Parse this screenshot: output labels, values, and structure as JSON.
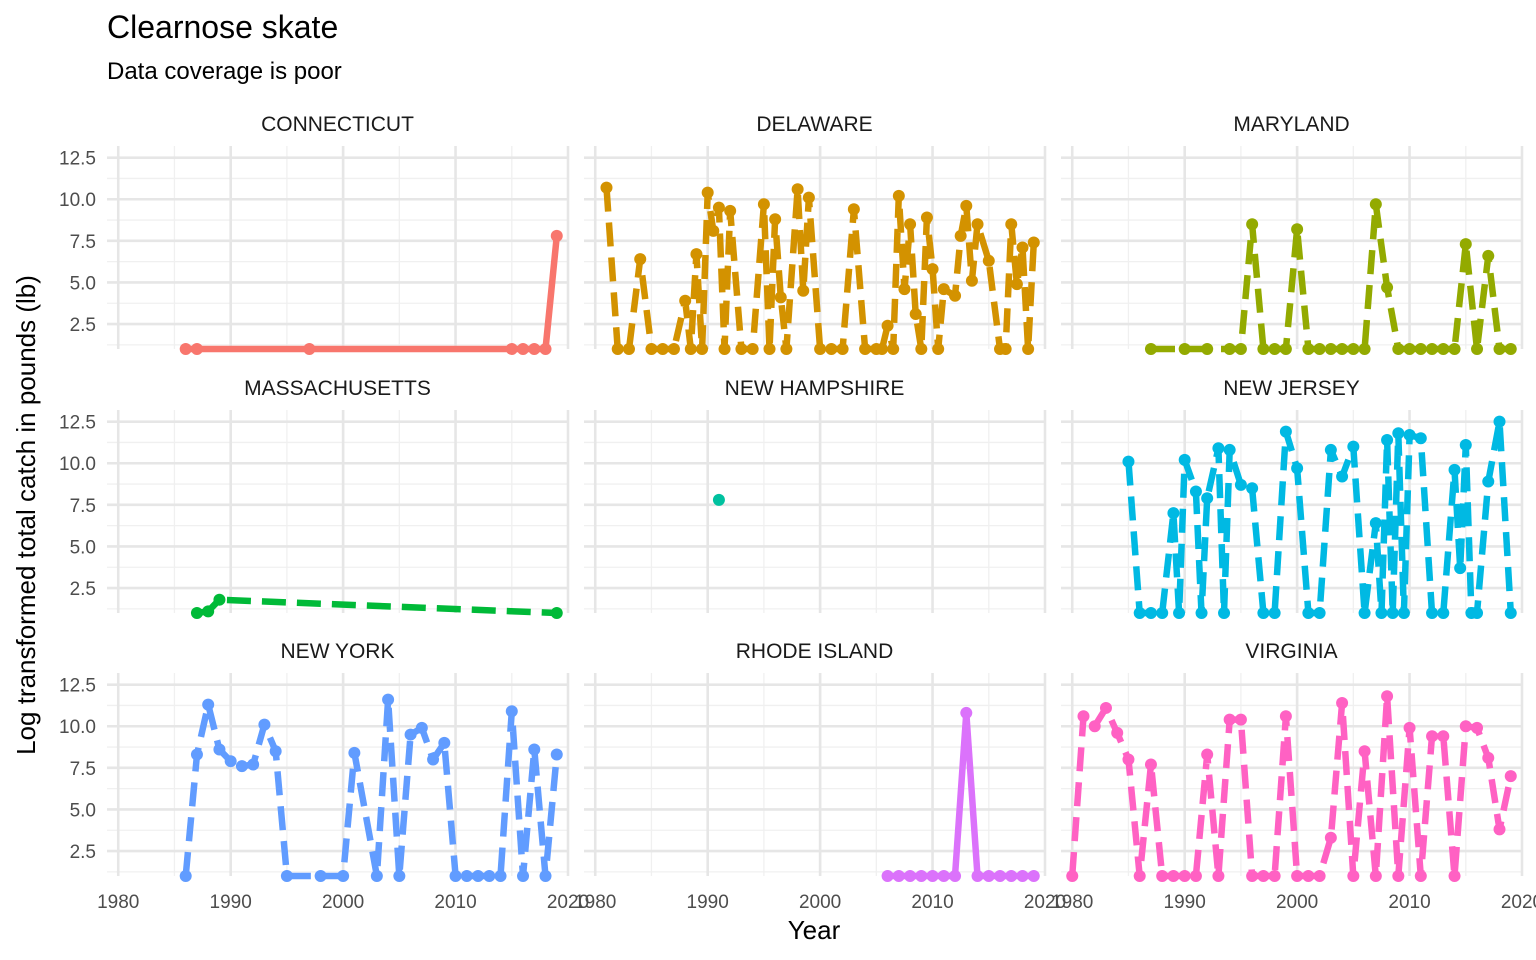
{
  "chart_data": {
    "type": "line",
    "title": "Clearnose skate",
    "subtitle": "Data coverage is poor",
    "xlabel": "Year",
    "ylabel": "Log transformed  total catch in pounds (lb)",
    "xlim": [
      1979,
      2020
    ],
    "ylim": [
      1,
      13.2
    ],
    "x_ticks": [
      "1980",
      "1990",
      "2000",
      "2010",
      "2020"
    ],
    "y_ticks": [
      "2.5",
      "5.0",
      "7.5",
      "10.0",
      "12.5"
    ],
    "grid": true,
    "legend": "none",
    "panels": [
      {
        "name": "CONNECTICUT",
        "color": "#F8766D",
        "dashed": false,
        "x": [
          1986,
          1987,
          1997,
          2015,
          2016,
          2017,
          2018,
          2019
        ],
        "y": [
          1,
          1,
          1,
          1,
          1,
          1,
          1,
          7.8
        ]
      },
      {
        "name": "DELAWARE",
        "color": "#D39200",
        "dashed": true,
        "x": [
          1981,
          1982,
          1983,
          1984,
          1985,
          1986,
          1987,
          1988,
          1988.5,
          1989,
          1989.5,
          1990,
          1990.5,
          1991,
          1991.5,
          1992,
          1993,
          1994,
          1995,
          1995.5,
          1996,
          1996.5,
          1997,
          1998,
          1998.5,
          1999,
          2000,
          2001,
          2002,
          2003,
          2004,
          2005,
          2005.5,
          2006,
          2006.5,
          2007,
          2007.5,
          2008,
          2008.5,
          2009,
          2009.5,
          2010,
          2010.5,
          2011,
          2012,
          2012.5,
          2013,
          2013.5,
          2014,
          2015,
          2016,
          2016.5,
          2017,
          2017.5,
          2018,
          2018.5,
          2019
        ],
        "y": [
          10.7,
          1,
          1,
          6.4,
          1,
          1,
          1,
          3.9,
          1,
          6.7,
          1,
          10.4,
          8.1,
          9.5,
          1,
          9.3,
          1,
          1,
          9.7,
          1,
          8.8,
          4.1,
          1,
          10.6,
          4.5,
          10.1,
          1,
          1,
          1,
          9.4,
          1,
          1,
          1,
          2.4,
          1,
          10.2,
          4.6,
          8.5,
          3.1,
          1,
          8.9,
          5.8,
          1,
          4.6,
          4.2,
          7.8,
          9.6,
          5.1,
          8.5,
          6.3,
          1,
          1,
          8.5,
          4.9,
          7.1,
          1,
          7.4
        ]
      },
      {
        "name": "MARYLAND",
        "color": "#93AA00",
        "dashed": true,
        "x": [
          1987,
          1990,
          1992,
          1994,
          1995,
          1996,
          1997,
          1998,
          1999,
          2000,
          2001,
          2002,
          2003,
          2004,
          2005,
          2006,
          2007,
          2008,
          2009,
          2010,
          2011,
          2012,
          2013,
          2014,
          2015,
          2016,
          2017,
          2018,
          2019
        ],
        "y": [
          1,
          1,
          1,
          1,
          1,
          8.5,
          1,
          1,
          1,
          8.2,
          1,
          1,
          1,
          1,
          1,
          1,
          9.7,
          4.7,
          1,
          1,
          1,
          1,
          1,
          1,
          7.3,
          1,
          6.6,
          1,
          1
        ]
      },
      {
        "name": "MASSACHUSETTS",
        "color": "#00BA38",
        "dashed": true,
        "x": [
          1987,
          1988,
          1989,
          2019
        ],
        "y": [
          1,
          1.1,
          1.8,
          1
        ]
      },
      {
        "name": "NEW HAMPSHIRE",
        "color": "#00C19F",
        "dashed": false,
        "x": [
          1991
        ],
        "y": [
          7.8
        ]
      },
      {
        "name": "NEW JERSEY",
        "color": "#00B9E3",
        "dashed": true,
        "x": [
          1985,
          1986,
          1987,
          1988,
          1989,
          1989.5,
          1990,
          1991,
          1991.5,
          1992,
          1993,
          1993.5,
          1994,
          1995,
          1996,
          1997,
          1998,
          1999,
          2000,
          2001,
          2002,
          2003,
          2004,
          2005,
          2006,
          2007,
          2007.5,
          2008,
          2008.5,
          2009,
          2009.5,
          2010,
          2011,
          2012,
          2013,
          2014,
          2014.5,
          2015,
          2015.5,
          2016,
          2017,
          2018,
          2019
        ],
        "y": [
          10.1,
          1,
          1,
          1,
          7.0,
          1,
          10.2,
          8.3,
          1,
          7.9,
          10.9,
          1,
          10.8,
          8.7,
          8.5,
          1,
          1,
          11.9,
          9.7,
          1,
          1,
          10.8,
          9.2,
          11.0,
          1,
          6.4,
          1,
          11.4,
          1,
          11.8,
          1,
          11.7,
          11.5,
          1,
          1,
          9.6,
          3.7,
          11.1,
          1,
          1,
          8.9,
          12.5,
          1
        ]
      },
      {
        "name": "NEW YORK",
        "color": "#619CFF",
        "dashed": true,
        "x": [
          1986,
          1987,
          1988,
          1989,
          1990,
          1991,
          1992,
          1993,
          1994,
          1995,
          1998,
          2000,
          2001,
          2003,
          2004,
          2005,
          2006,
          2007,
          2008,
          2009,
          2010,
          2011,
          2012,
          2013,
          2014,
          2015,
          2016,
          2017,
          2018,
          2019
        ],
        "y": [
          1,
          8.3,
          11.3,
          8.6,
          7.9,
          7.6,
          7.7,
          10.1,
          8.5,
          1,
          1,
          1,
          8.4,
          1,
          11.6,
          1,
          9.5,
          9.9,
          8.0,
          9.0,
          1,
          1,
          1,
          1,
          1,
          10.9,
          1,
          8.6,
          1,
          8.3
        ]
      },
      {
        "name": "RHODE ISLAND",
        "color": "#DB72FB",
        "dashed": false,
        "x": [
          2006,
          2007,
          2008,
          2009,
          2010,
          2011,
          2012,
          2013,
          2014,
          2015,
          2016,
          2017,
          2018,
          2019
        ],
        "y": [
          1,
          1,
          1,
          1,
          1,
          1,
          1,
          10.8,
          1,
          1,
          1,
          1,
          1,
          1
        ]
      },
      {
        "name": "VIRGINIA",
        "color": "#FF61C3",
        "dashed": true,
        "x": [
          1980,
          1981,
          1982,
          1983,
          1984,
          1985,
          1986,
          1987,
          1988,
          1989,
          1990,
          1991,
          1992,
          1993,
          1994,
          1995,
          1996,
          1997,
          1998,
          1999,
          2000,
          2001,
          2002,
          2003,
          2004,
          2005,
          2006,
          2007,
          2008,
          2009,
          2010,
          2011,
          2012,
          2013,
          2014,
          2015,
          2016,
          2017,
          2018,
          2019
        ],
        "y": [
          1,
          10.6,
          10.0,
          11.1,
          9.6,
          8.0,
          1,
          7.7,
          1,
          1,
          1,
          1,
          8.3,
          1,
          10.4,
          10.4,
          1,
          1,
          1,
          10.6,
          1,
          1,
          1,
          3.3,
          11.4,
          1,
          8.5,
          1,
          11.8,
          1,
          9.9,
          1,
          9.4,
          9.4,
          1,
          10.0,
          9.9,
          8.1,
          3.8,
          7.0
        ]
      }
    ]
  }
}
